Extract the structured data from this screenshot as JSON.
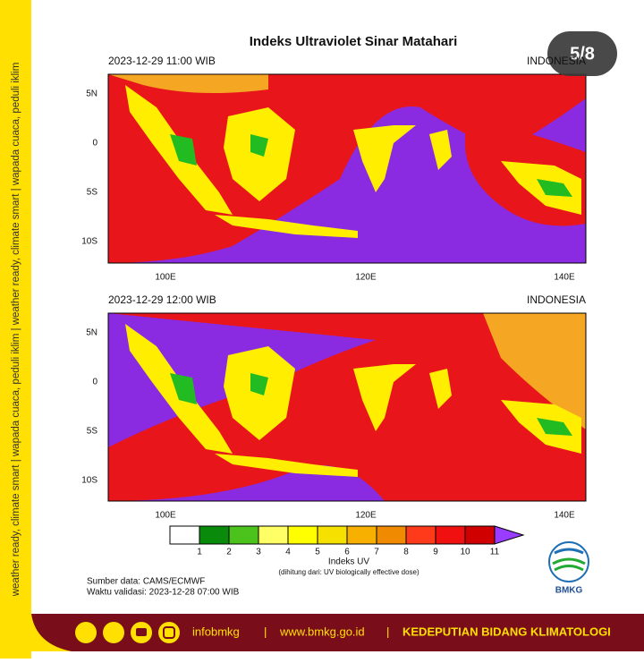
{
  "side_text": "weather ready, climate smart | wapada cuaca, peduli iklim | weather ready, climate smart | wapada cuaca, peduli iklim",
  "badge": "5/8",
  "title": "Indeks Ultraviolet Sinar Matahari",
  "panels": [
    {
      "time": "2023-12-29 11:00 WIB",
      "region": "INDONESIA",
      "lat_labels": [
        "5N",
        "0",
        "5S",
        "10S"
      ],
      "lon_labels": [
        "100E",
        "120E",
        "140E"
      ]
    },
    {
      "time": "2023-12-29 12:00 WIB",
      "region": "INDONESIA",
      "lat_labels": [
        "5N",
        "0",
        "5S",
        "10S"
      ],
      "lon_labels": [
        "100E",
        "120E",
        "140E"
      ]
    }
  ],
  "colorbar": {
    "labels": [
      "1",
      "2",
      "3",
      "4",
      "5",
      "6",
      "7",
      "8",
      "9",
      "10",
      "11"
    ],
    "title": "Indeks UV",
    "note": "(dihitung dari: UV biologically effective dose)"
  },
  "source": "Sumber data: CAMS/ECMWF",
  "validity": "Waktu validasi: 2023-12-28 07:00 WIB",
  "logo": "BMKG",
  "footer": {
    "handle": "infobmkg",
    "separator": "|",
    "website": "www.bmkg.go.id",
    "org": "KEDEPUTIAN BIDANG KLIMATOLOGI"
  }
}
